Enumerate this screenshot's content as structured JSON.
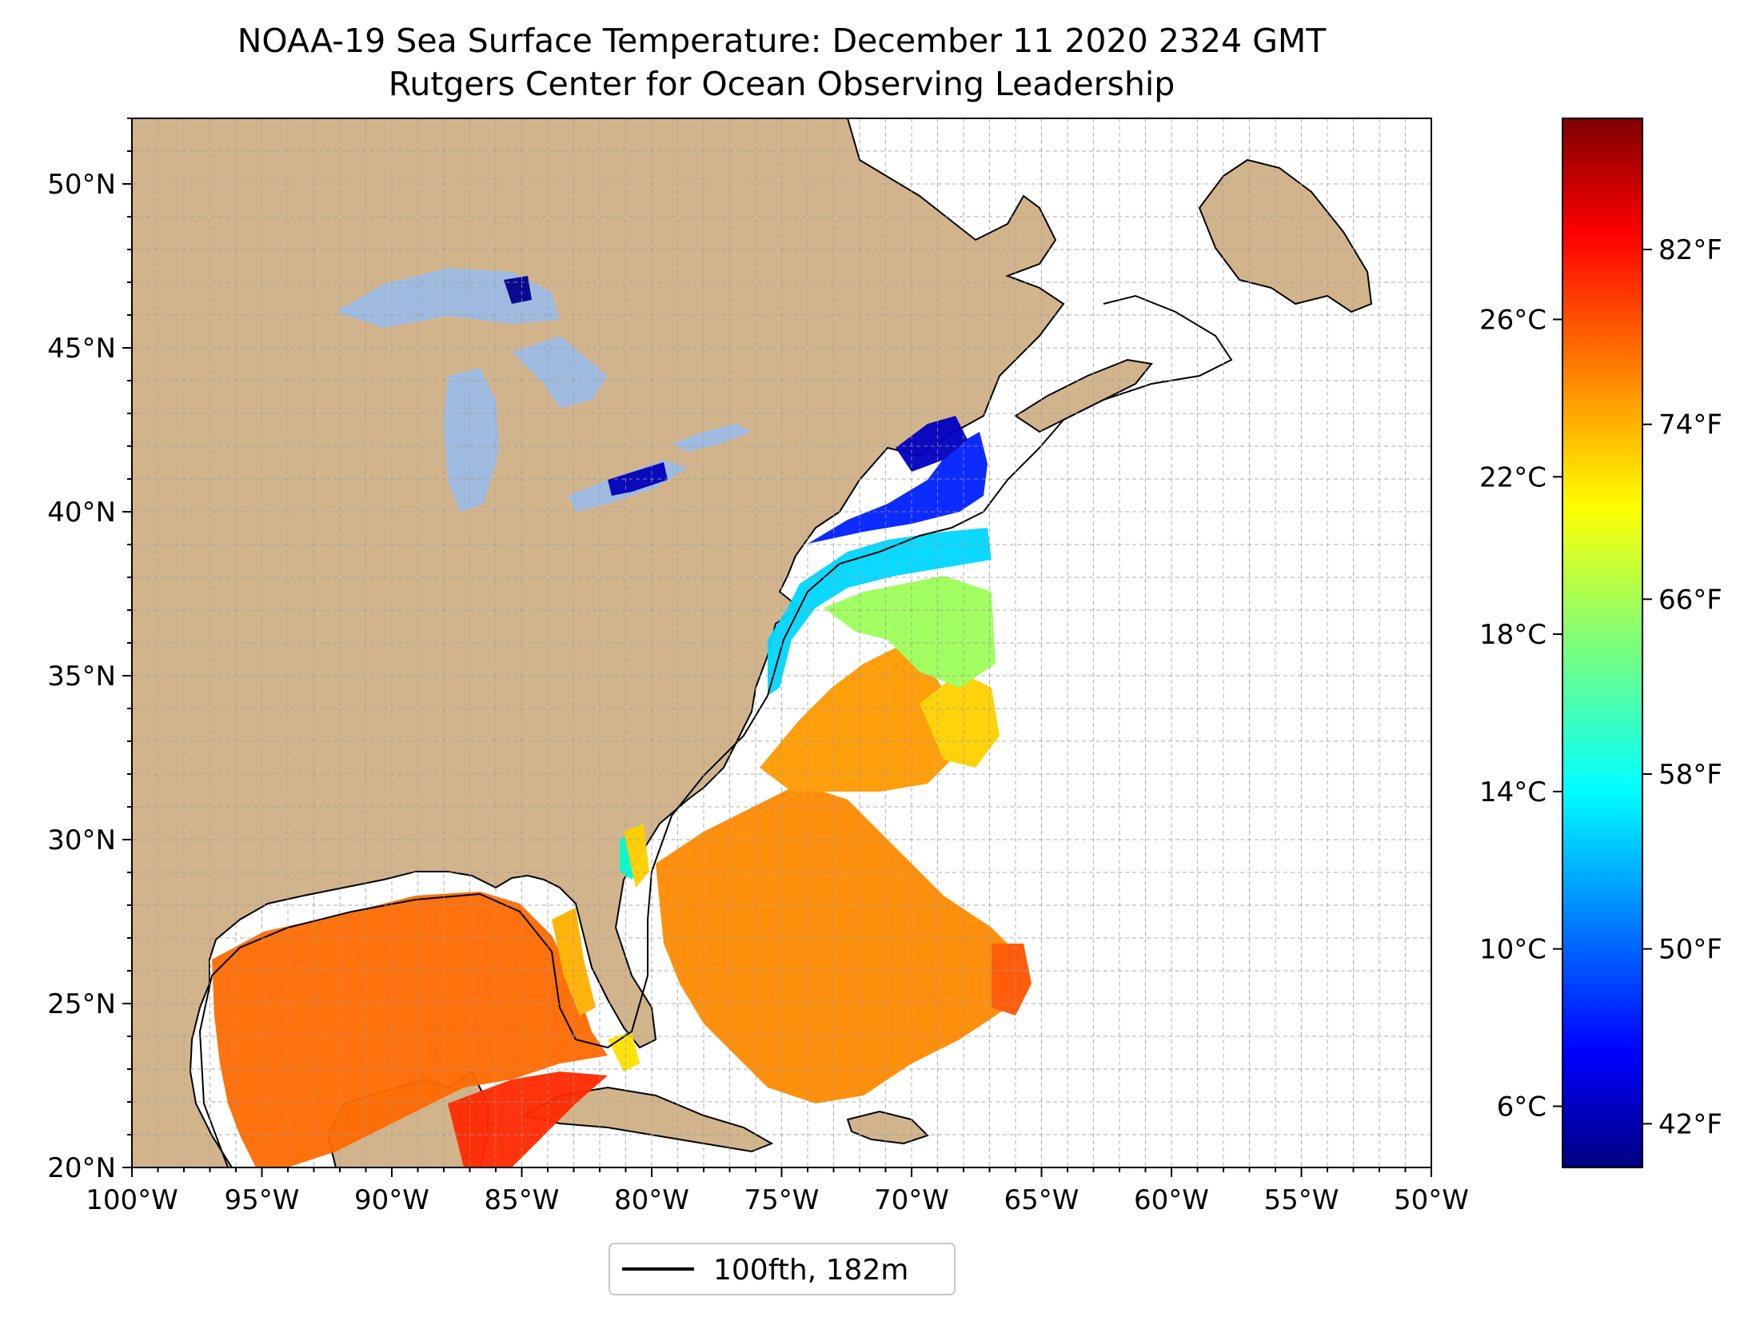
{
  "title": "NOAA-19 Sea Surface Temperature: December 11 2020 2324 GMT",
  "subtitle": "Rutgers Center for Ocean Observing Leadership",
  "map": {
    "projection": "PlateCarree",
    "extent": {
      "lon": [
        -100,
        -50
      ],
      "lat": [
        20,
        52
      ]
    },
    "land_color": "#d2b48c",
    "lake_color": "#9fbadf",
    "ocean_color": "#ffffff",
    "grid": true,
    "lon_ticks": [
      {
        "value": -100,
        "label": "100°W"
      },
      {
        "value": -95,
        "label": "95°W"
      },
      {
        "value": -90,
        "label": "90°W"
      },
      {
        "value": -85,
        "label": "85°W"
      },
      {
        "value": -80,
        "label": "80°W"
      },
      {
        "value": -75,
        "label": "75°W"
      },
      {
        "value": -70,
        "label": "70°W"
      },
      {
        "value": -65,
        "label": "65°W"
      },
      {
        "value": -60,
        "label": "60°W"
      },
      {
        "value": -55,
        "label": "55°W"
      },
      {
        "value": -50,
        "label": "50°W"
      }
    ],
    "lat_ticks": [
      {
        "value": 20,
        "label": "20°N"
      },
      {
        "value": 25,
        "label": "25°N"
      },
      {
        "value": 30,
        "label": "30°N"
      },
      {
        "value": 35,
        "label": "35°N"
      },
      {
        "value": 40,
        "label": "40°N"
      },
      {
        "value": 45,
        "label": "45°N"
      },
      {
        "value": 50,
        "label": "50°N"
      }
    ]
  },
  "colorbar": {
    "colormap": "jet",
    "range_f": [
      40,
      88
    ],
    "left_ticks": [
      "26°C",
      "22°C",
      "18°C",
      "14°C",
      "10°C",
      "6°C"
    ],
    "left_tick_values_c": [
      26,
      22,
      18,
      14,
      10,
      6
    ],
    "right_ticks": [
      "82°F",
      "74°F",
      "66°F",
      "58°F",
      "50°F",
      "42°F"
    ],
    "right_tick_values_f": [
      82,
      74,
      66,
      58,
      50,
      42
    ],
    "colors": {
      "dark_blue": "#00007f",
      "blue": "#0000ff",
      "cyan": "#00ffff",
      "yellow": "#ffff00",
      "red": "#ff0000",
      "dark_red": "#7f0000"
    }
  },
  "legend": {
    "label": "100fth, 182m",
    "line_color": "#000000",
    "placement": "bottom-center"
  }
}
